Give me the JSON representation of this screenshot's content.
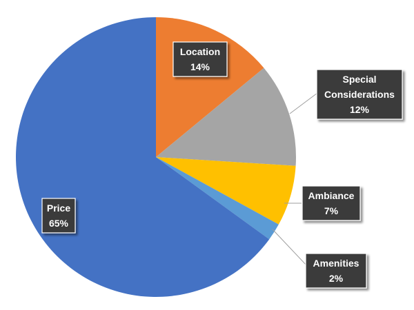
{
  "chart_data": {
    "type": "pie",
    "start_angle_deg": 0,
    "direction": "clockwise",
    "slices": [
      {
        "label": "Location",
        "value": 14,
        "display": "14%",
        "color": "#ED7D31"
      },
      {
        "label": "Special Considerations",
        "label_lines": [
          "Special",
          "Considerations"
        ],
        "value": 12,
        "display": "12%",
        "color": "#A5A5A5"
      },
      {
        "label": "Ambiance",
        "value": 7,
        "display": "7%",
        "color": "#FFC000"
      },
      {
        "label": "Amenities",
        "value": 2,
        "display": "2%",
        "color": "#5B9BD5"
      },
      {
        "label": "Price",
        "value": 65,
        "display": "65%",
        "color": "#4472C4"
      }
    ],
    "legend": "none",
    "data_labels": "category and percentage, dark callout boxes"
  }
}
